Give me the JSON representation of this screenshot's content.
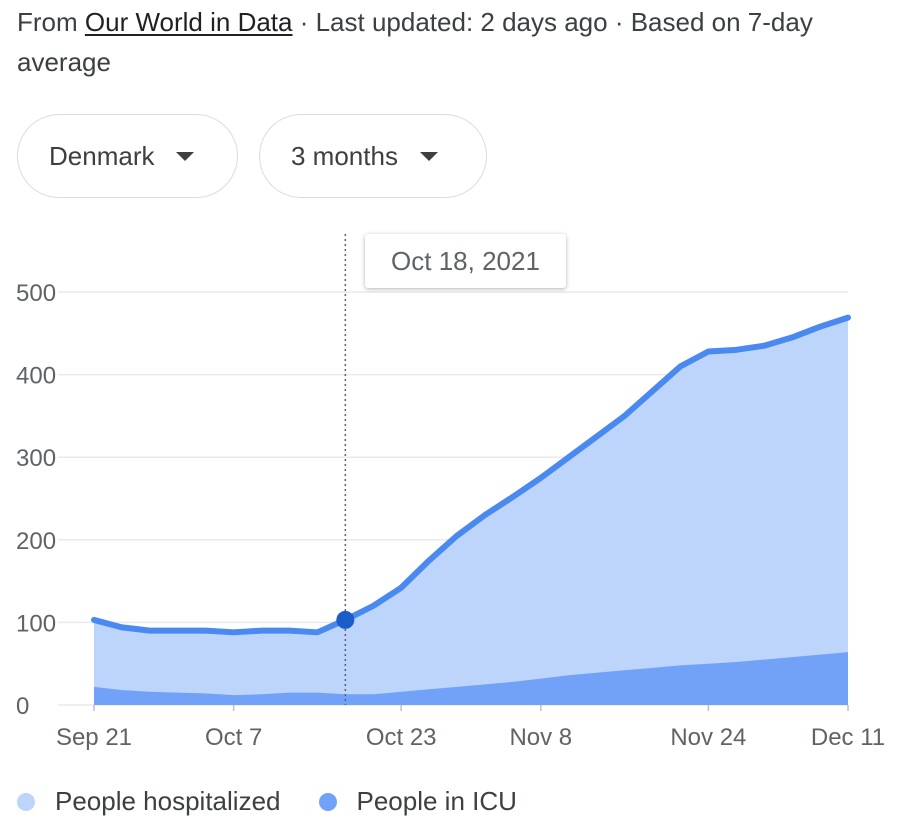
{
  "source": {
    "prefix": "From ",
    "link": "Our World in Data",
    "suffix": " · Last updated: 2 days ago · Based on 7-day average"
  },
  "filters": {
    "country": "Denmark",
    "range": "3 months"
  },
  "tooltip": {
    "date": "Oct 18, 2021"
  },
  "colors": {
    "hospital_fill": "#bdd5fa",
    "hospital_line": "#4a89f0",
    "icu_fill": "#72a2f7",
    "marker": "#1a5cc8",
    "grid": "#e8eaed"
  },
  "chart_data": {
    "type": "area",
    "title": "",
    "xlabel": "",
    "ylabel": "",
    "ylim": [
      0,
      500
    ],
    "yticks": [
      0,
      100,
      200,
      300,
      400,
      500
    ],
    "xticks": [
      "Sep 21",
      "Oct 7",
      "Oct 23",
      "Nov 8",
      "Nov 24",
      "Dec 11"
    ],
    "grid": true,
    "legend": "bottom",
    "x": [
      "Sep 21",
      "Sep 24",
      "Sep 27",
      "Sep 30",
      "Oct 3",
      "Oct 6",
      "Oct 9",
      "Oct 12",
      "Oct 15",
      "Oct 18",
      "Oct 21",
      "Oct 24",
      "Oct 27",
      "Oct 30",
      "Nov 2",
      "Nov 5",
      "Nov 8",
      "Nov 11",
      "Nov 14",
      "Nov 17",
      "Nov 20",
      "Nov 23",
      "Nov 26",
      "Nov 29",
      "Dec 2",
      "Dec 5",
      "Dec 8",
      "Dec 11"
    ],
    "series": [
      {
        "name": "People hospitalized",
        "values": [
          103,
          94,
          90,
          90,
          90,
          88,
          90,
          90,
          88,
          103,
          120,
          142,
          175,
          205,
          230,
          252,
          275,
          300,
          325,
          350,
          380,
          410,
          428,
          430,
          435,
          445,
          458,
          469
        ]
      },
      {
        "name": "People in ICU",
        "values": [
          22,
          18,
          16,
          15,
          14,
          12,
          13,
          15,
          15,
          13,
          13,
          16,
          19,
          22,
          25,
          28,
          32,
          36,
          39,
          42,
          45,
          48,
          50,
          52,
          55,
          58,
          61,
          64
        ]
      }
    ],
    "highlight": {
      "x": "Oct 18",
      "value": 103
    }
  }
}
